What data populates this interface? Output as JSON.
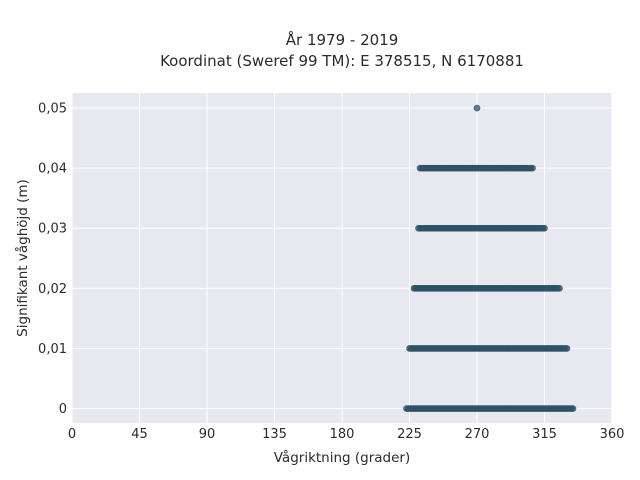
{
  "chart_data": {
    "type": "scatter",
    "title_line1": "År 1979 - 2019",
    "title_line2": "Koordinat (Sweref 99 TM): E 378515, N 6170881",
    "xlabel": "Vågriktning (grader)",
    "ylabel": "Signifikant våghöjd (m)",
    "xlim": [
      0,
      360
    ],
    "ylim": [
      -0.0024,
      0.0525
    ],
    "x_ticks": [
      0,
      45,
      90,
      135,
      180,
      225,
      270,
      315,
      360
    ],
    "x_tick_labels": [
      "0",
      "45",
      "90",
      "135",
      "180",
      "225",
      "270",
      "315",
      "360"
    ],
    "y_ticks": [
      0,
      0.01,
      0.02,
      0.03,
      0.04,
      0.05
    ],
    "y_tick_labels": [
      "0",
      "0,01",
      "0,02",
      "0,03",
      "0,04",
      "0,05"
    ],
    "grid": true,
    "marker_color": "#2f5266",
    "plot_background": "#e8e8f0",
    "series": [
      {
        "points": [
          {
            "y": 0.0,
            "x_min": 223,
            "x_max": 334
          },
          {
            "y": 0.01,
            "x_min": 225,
            "x_max": 330
          },
          {
            "y": 0.02,
            "x_min": 228,
            "x_max": 325
          },
          {
            "y": 0.03,
            "x_min": 231,
            "x_max": 315
          },
          {
            "y": 0.04,
            "x_min": 232,
            "x_max": 307
          },
          {
            "y": 0.05,
            "x_min": 270,
            "x_max": 270
          }
        ]
      }
    ]
  }
}
